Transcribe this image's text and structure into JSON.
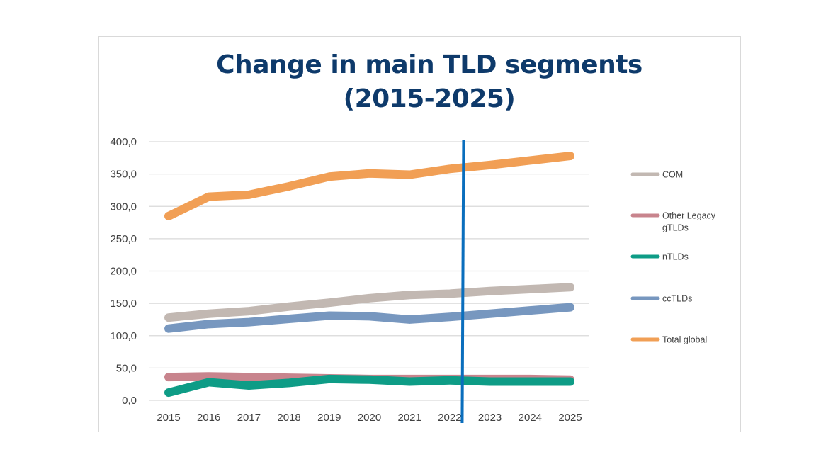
{
  "chart_data": {
    "type": "line",
    "title": "Change in main TLD segments (2015-2025)",
    "title_lines": [
      "Change in main TLD segments",
      "(2015-2025)"
    ],
    "xlabel": "",
    "ylabel": "",
    "categories": [
      "2015",
      "2016",
      "2017",
      "2018",
      "2019",
      "2020",
      "2021",
      "2022",
      "2023",
      "2024",
      "2025"
    ],
    "ylim": [
      0,
      400
    ],
    "yticks": [
      0,
      50,
      100,
      150,
      200,
      250,
      300,
      350,
      400
    ],
    "ytick_labels": [
      "0,0",
      "50,0",
      "100,0",
      "150,0",
      "200,0",
      "250,0",
      "300,0",
      "350,0",
      "400,0"
    ],
    "grid": true,
    "legend_position": "right",
    "series": [
      {
        "name": "COM",
        "color": "#c2b8b2",
        "values": [
          128,
          134,
          138,
          145,
          151,
          158,
          163,
          165,
          169,
          172,
          175
        ]
      },
      {
        "name": "Other Legacy gTLDs",
        "legend_lines": [
          "Other Legacy",
          "gTLDs"
        ],
        "color": "#c8848d",
        "values": [
          36,
          37,
          36,
          35,
          34,
          33,
          33,
          33,
          33,
          33,
          32
        ]
      },
      {
        "name": "nTLDs",
        "color": "#0e9c86",
        "values": [
          12,
          28,
          23,
          27,
          33,
          32,
          29,
          31,
          29,
          29,
          29
        ]
      },
      {
        "name": "ccTLDs",
        "color": "#7797bf",
        "values": [
          111,
          118,
          121,
          126,
          131,
          130,
          125,
          129,
          134,
          139,
          144
        ]
      },
      {
        "name": "Total global",
        "color": "#f19f55",
        "values": [
          285,
          315,
          318,
          331,
          346,
          351,
          349,
          358,
          364,
          371,
          378
        ]
      }
    ],
    "annotations": [
      {
        "type": "vertical-line",
        "x_between": [
          "2022",
          "2023"
        ],
        "x_fraction": 0.08,
        "color": "#0a6ebd"
      }
    ]
  }
}
